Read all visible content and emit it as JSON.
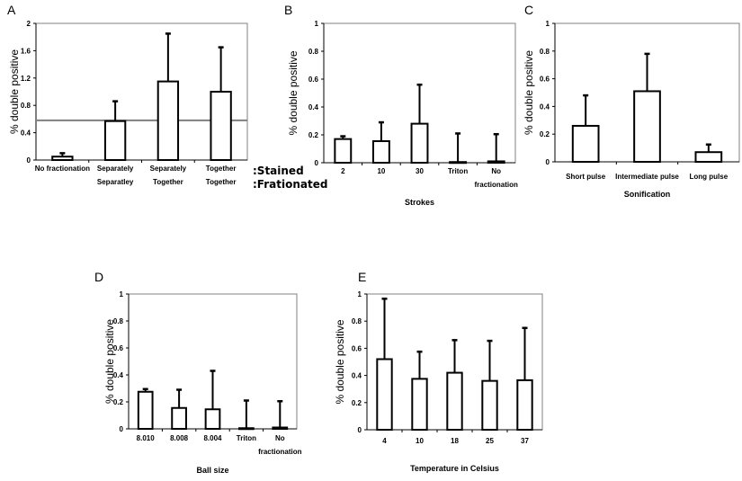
{
  "colors": {
    "bar_fill": "#ffffff",
    "bar_stroke": "#000000",
    "axis": "#808080",
    "reference_line": "#808080"
  },
  "chart_data": [
    {
      "panel": "A",
      "type": "bar",
      "ylabel": "% double positive",
      "xlabel": "",
      "ylim": [
        0,
        2
      ],
      "yticks": [
        "0",
        "0.4",
        "0.8",
        "1.2",
        "1.6",
        "2"
      ],
      "ytick_values": [
        0,
        0.4,
        0.8,
        1.2,
        1.6,
        2
      ],
      "categories": [
        [
          "No fractionation"
        ],
        [
          "Separately",
          "Separatley"
        ],
        [
          "Separately",
          "Together"
        ],
        [
          "Together",
          "Together"
        ]
      ],
      "values": [
        0.05,
        0.57,
        1.15,
        1.0
      ],
      "error_upper": [
        0.1,
        0.86,
        1.85,
        1.65
      ],
      "reference_line": 0.58,
      "row_labels": [
        ":Stained",
        ":Frationated"
      ]
    },
    {
      "panel": "B",
      "type": "bar",
      "ylabel": "% double positive",
      "xlabel": "Strokes",
      "ylim": [
        0,
        1
      ],
      "yticks": [
        "0",
        "0.2",
        "0.4",
        "0.6",
        "0.8",
        "1"
      ],
      "ytick_values": [
        0,
        0.2,
        0.4,
        0.6,
        0.8,
        1
      ],
      "categories": [
        [
          "2"
        ],
        [
          "10"
        ],
        [
          "30"
        ],
        [
          "Triton"
        ],
        [
          "No",
          "fractionation"
        ]
      ],
      "values": [
        0.17,
        0.155,
        0.28,
        0.005,
        0.01
      ],
      "error_upper": [
        0.19,
        0.29,
        0.56,
        0.21,
        0.205
      ]
    },
    {
      "panel": "C",
      "type": "bar",
      "ylabel": "% double positive",
      "xlabel": "Sonification",
      "ylim": [
        0,
        1
      ],
      "yticks": [
        "0",
        "0.2",
        "0.4",
        "0.6",
        "0.8",
        "1"
      ],
      "ytick_values": [
        0,
        0.2,
        0.4,
        0.6,
        0.8,
        1
      ],
      "categories": [
        [
          "Short pulse"
        ],
        [
          "Intermediate pulse"
        ],
        [
          "Long pulse"
        ]
      ],
      "values": [
        0.26,
        0.51,
        0.07
      ],
      "error_upper": [
        0.48,
        0.78,
        0.125
      ]
    },
    {
      "panel": "D",
      "type": "bar",
      "ylabel": "% double positive",
      "xlabel": "Ball size",
      "ylim": [
        0,
        1
      ],
      "yticks": [
        "0",
        "0.2",
        "0.4",
        "0.6",
        "0.8",
        "1"
      ],
      "ytick_values": [
        0,
        0.2,
        0.4,
        0.6,
        0.8,
        1
      ],
      "categories": [
        [
          "8.010"
        ],
        [
          "8.008"
        ],
        [
          "8.004"
        ],
        [
          "Triton"
        ],
        [
          "No",
          "fractionation"
        ]
      ],
      "values": [
        0.275,
        0.155,
        0.145,
        0.005,
        0.01
      ],
      "error_upper": [
        0.295,
        0.29,
        0.43,
        0.21,
        0.205
      ]
    },
    {
      "panel": "E",
      "type": "bar",
      "ylabel": "% double positive",
      "xlabel": "Temperature in Celsius",
      "ylim": [
        0,
        1
      ],
      "yticks": [
        "0",
        "0.2",
        "0.4",
        "0.6",
        "0.8",
        "1"
      ],
      "ytick_values": [
        0,
        0.2,
        0.4,
        0.6,
        0.8,
        1
      ],
      "categories": [
        [
          "4"
        ],
        [
          "10"
        ],
        [
          "18"
        ],
        [
          "25"
        ],
        [
          "37"
        ]
      ],
      "values": [
        0.52,
        0.375,
        0.42,
        0.36,
        0.365
      ],
      "error_upper": [
        0.965,
        0.575,
        0.66,
        0.655,
        0.75
      ]
    }
  ]
}
